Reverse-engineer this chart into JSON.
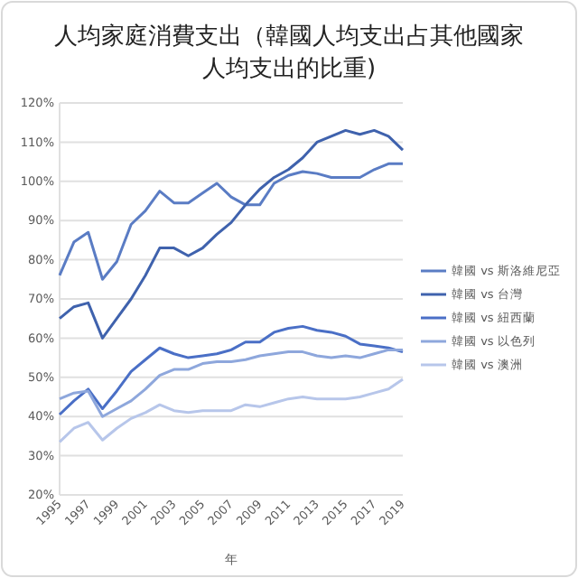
{
  "chart_data": {
    "type": "line",
    "title": "人均家庭消費支出（韓國人均支出占其他國家人均支出的比重)",
    "xlabel": "年",
    "x": [
      1995,
      1996,
      1997,
      1998,
      1999,
      2000,
      2001,
      2002,
      2003,
      2004,
      2005,
      2006,
      2007,
      2008,
      2009,
      2010,
      2011,
      2012,
      2013,
      2014,
      2015,
      2016,
      2017,
      2018,
      2019
    ],
    "series": [
      {
        "name": "韓國 vs 斯洛維尼亞",
        "color": "#5a7cc4",
        "values": [
          76,
          84.5,
          87,
          75,
          79.5,
          89,
          92.5,
          97.5,
          94.5,
          94.5,
          97,
          99.5,
          96,
          94,
          94,
          99.5,
          101.5,
          102.5,
          102,
          101,
          101,
          101,
          103,
          104.5,
          104.5
        ]
      },
      {
        "name": "韓國 vs 台灣",
        "color": "#3f62ad",
        "values": [
          65,
          68,
          69,
          60,
          65,
          70,
          76,
          83,
          83,
          81,
          83,
          86.5,
          89.5,
          94,
          98,
          101,
          103,
          106,
          110,
          111.5,
          113,
          112,
          113,
          111.5,
          108
        ]
      },
      {
        "name": "韓國 vs 紐西蘭",
        "color": "#4a6fc6",
        "values": [
          40.5,
          44,
          47,
          42,
          46.5,
          51.5,
          54.5,
          57.5,
          56,
          55,
          55.5,
          56,
          57,
          59,
          59,
          61.5,
          62.5,
          63,
          62,
          61.5,
          60.5,
          58.5,
          58,
          57.5,
          56.5
        ]
      },
      {
        "name": "韓國 vs 以色列",
        "color": "#8ea7dc",
        "values": [
          44.5,
          46,
          46.5,
          40,
          42,
          44,
          47,
          50.5,
          52,
          52,
          53.5,
          54,
          54,
          54.5,
          55.5,
          56,
          56.5,
          56.5,
          55.5,
          55,
          55.5,
          55,
          56,
          57,
          57
        ]
      },
      {
        "name": "韓國 vs 澳洲",
        "color": "#b7c6ea",
        "values": [
          33.5,
          37,
          38.5,
          34,
          37,
          39.5,
          41,
          43,
          41.5,
          41,
          41.5,
          41.5,
          41.5,
          43,
          42.5,
          43.5,
          44.5,
          45,
          44.5,
          44.5,
          44.5,
          45,
          46,
          47,
          49.5
        ]
      }
    ],
    "xlim": [
      1995,
      2019
    ],
    "xticks": [
      1995,
      1997,
      1999,
      2001,
      2003,
      2005,
      2007,
      2009,
      2011,
      2013,
      2015,
      2017,
      2019
    ],
    "ylim": [
      20,
      120
    ],
    "yticks": [
      {
        "value": 20,
        "label": "20%"
      },
      {
        "value": 30,
        "label": "30%"
      },
      {
        "value": 40,
        "label": "40%"
      },
      {
        "value": 50,
        "label": "50%"
      },
      {
        "value": 60,
        "label": "60%"
      },
      {
        "value": 70,
        "label": "70%"
      },
      {
        "value": 80,
        "label": "80%"
      },
      {
        "value": 90,
        "label": "90%"
      },
      {
        "value": 100,
        "label": "100%"
      },
      {
        "value": 110,
        "label": "110%"
      },
      {
        "value": 120,
        "label": "120%"
      }
    ],
    "grid": "y",
    "legend": "right",
    "marker": "none",
    "line_style": "solid"
  }
}
